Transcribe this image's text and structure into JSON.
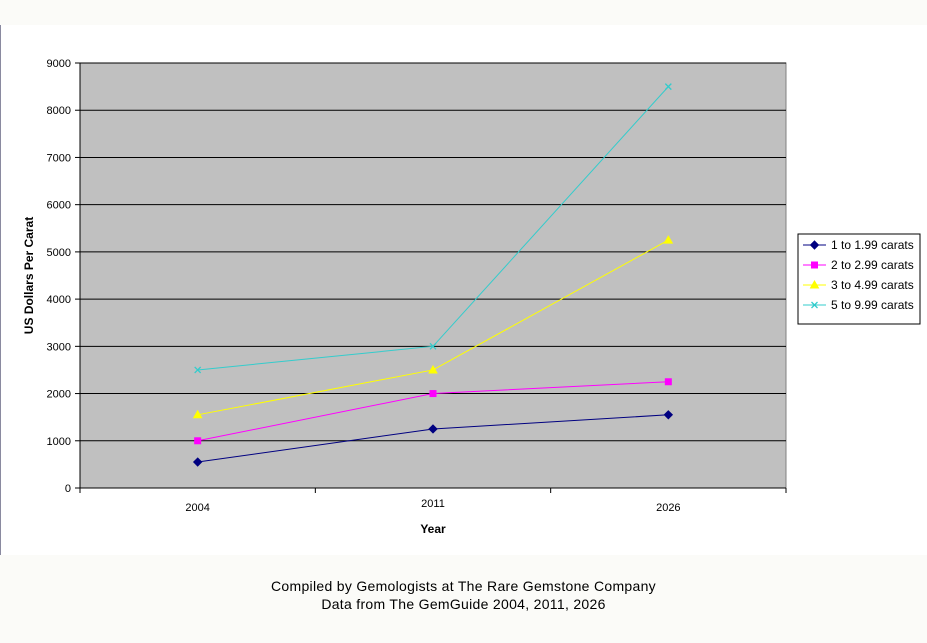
{
  "chart_data": {
    "type": "line",
    "categories": [
      "2004",
      "2011",
      "2026"
    ],
    "xlabel": "Year",
    "ylabel": "US Dollars Per Carat",
    "ylim": [
      0,
      9000
    ],
    "yticks": [
      0,
      1000,
      2000,
      3000,
      4000,
      5000,
      6000,
      7000,
      8000,
      9000
    ],
    "grid": true,
    "legend_position": "right",
    "plot_background": "#c0c0c0",
    "series": [
      {
        "name": "1 to 1.99 carats",
        "values": [
          550,
          1250,
          1550
        ],
        "color": "#000080",
        "marker": "diamond"
      },
      {
        "name": "2 to 2.99 carats",
        "values": [
          1000,
          2000,
          2250
        ],
        "color": "#ff00ff",
        "marker": "square"
      },
      {
        "name": "3 to 4.99 carats",
        "values": [
          1550,
          2500,
          5250
        ],
        "color": "#ffff00",
        "marker": "triangle"
      },
      {
        "name": "5 to 9.99 carats",
        "values": [
          2500,
          3000,
          8500
        ],
        "color": "#33cccc",
        "marker": "x"
      }
    ]
  },
  "caption": {
    "line1": "Compiled by Gemologists at The Rare Gemstone Company",
    "line2": "Data from The GemGuide 2004, 2011, 2026"
  }
}
